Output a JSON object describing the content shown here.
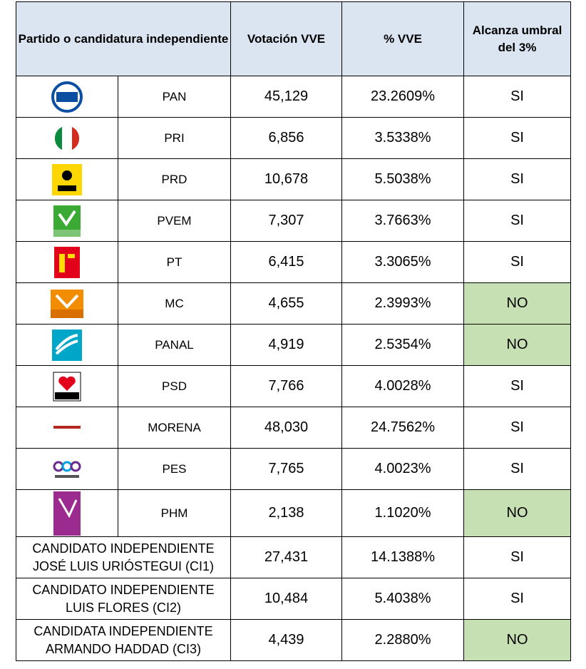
{
  "table": {
    "headers": [
      "Partido o candidatura independiente",
      "Votación VVE",
      "% VVE",
      "Alcanza umbral del 3%"
    ],
    "rows": [
      {
        "party": "PAN",
        "votes": "45,129",
        "pct": "23.2609%",
        "threshold": "SI"
      },
      {
        "party": "PRI",
        "votes": "6,856",
        "pct": "3.5338%",
        "threshold": "SI"
      },
      {
        "party": "PRD",
        "votes": "10,678",
        "pct": "5.5038%",
        "threshold": "SI"
      },
      {
        "party": "PVEM",
        "votes": "7,307",
        "pct": "3.7663%",
        "threshold": "SI"
      },
      {
        "party": "PT",
        "votes": "6,415",
        "pct": "3.3065%",
        "threshold": "SI"
      },
      {
        "party": "MC",
        "votes": "4,655",
        "pct": "2.3993%",
        "threshold": "NO"
      },
      {
        "party": "PANAL",
        "votes": "4,919",
        "pct": "2.5354%",
        "threshold": "NO"
      },
      {
        "party": "PSD",
        "votes": "7,766",
        "pct": "4.0028%",
        "threshold": "SI"
      },
      {
        "party": "MORENA",
        "votes": "48,030",
        "pct": "24.7562%",
        "threshold": "SI"
      },
      {
        "party": "PES",
        "votes": "7,765",
        "pct": "4.0023%",
        "threshold": "SI"
      },
      {
        "party": "PHM",
        "votes": "2,138",
        "pct": "1.1020%",
        "threshold": "NO"
      }
    ],
    "independents": [
      {
        "name": "CANDIDATO INDEPENDIENTE\nJOSÉ LUIS URIÓSTEGUI (CI1)",
        "votes": "27,431",
        "pct": "14.1388%",
        "threshold": "SI"
      },
      {
        "name": "CANDIDATO INDEPENDIENTE\nLUIS FLORES (CI2)",
        "votes": "10,484",
        "pct": "5.4038%",
        "threshold": "SI"
      },
      {
        "name": "CANDIDATA INDEPENDIENTE\nARMANDO HADDAD (CI3)",
        "votes": "4,439",
        "pct": "2.2880%",
        "threshold": "NO"
      }
    ]
  }
}
